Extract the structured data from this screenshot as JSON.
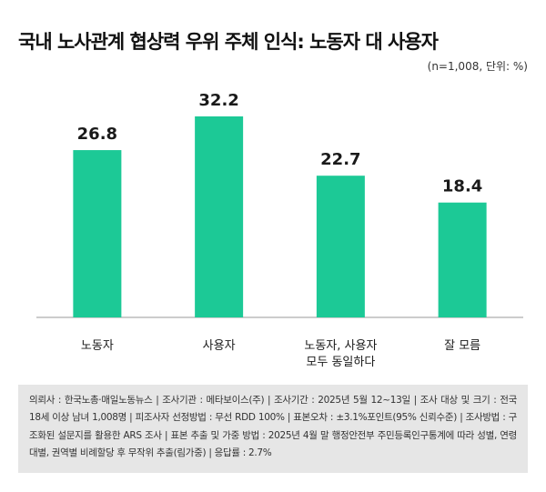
{
  "title": "국내 노사관계 협상력 우위 주체 인식: 노동자 대 사용자",
  "sample_note": "(n=1,008, 단위: %)",
  "footnote": "의뢰사 : 한국노총·매일노동뉴스 | 조사기관 : 메타보이스(주) | 조사기간 : 2025년 5월 12~13일 | 조사 대상 및 크기 : 전국 18세 이상 남녀 1,008명 | 피조사자 선정방법 : 무선 RDD 100% | 표본오차 : ±3.1%포인트(95% 신뢰수준) | 조사방법 : 구조화된 설문지를 활용한 ARS 조사 | 표본 추출 및 가중 방법 : 2025년 4월 말 행정안전부 주민등록인구통계에 따라 성별, 연령대별, 권역별 비례할당 후 무작위 추출(림가중) | 응답률 : 2.7%",
  "colors": {
    "bar": "#1cc996",
    "axis": "#999999",
    "text": "#1a1a1a"
  },
  "chart_data": {
    "type": "bar",
    "categories": [
      [
        "노동자"
      ],
      [
        "사용자"
      ],
      [
        "노동자, 사용자",
        "모두 동일하다"
      ],
      [
        "잘 모름"
      ]
    ],
    "values": [
      26.8,
      32.2,
      22.7,
      18.4
    ],
    "value_labels": [
      "26.8",
      "32.2",
      "22.7",
      "18.4"
    ],
    "title": "국내 노사관계 협상력 우위 주체 인식: 노동자 대 사용자",
    "xlabel": "",
    "ylabel": "",
    "ylim": [
      0,
      32.2
    ],
    "grid": false,
    "legend": "none"
  }
}
